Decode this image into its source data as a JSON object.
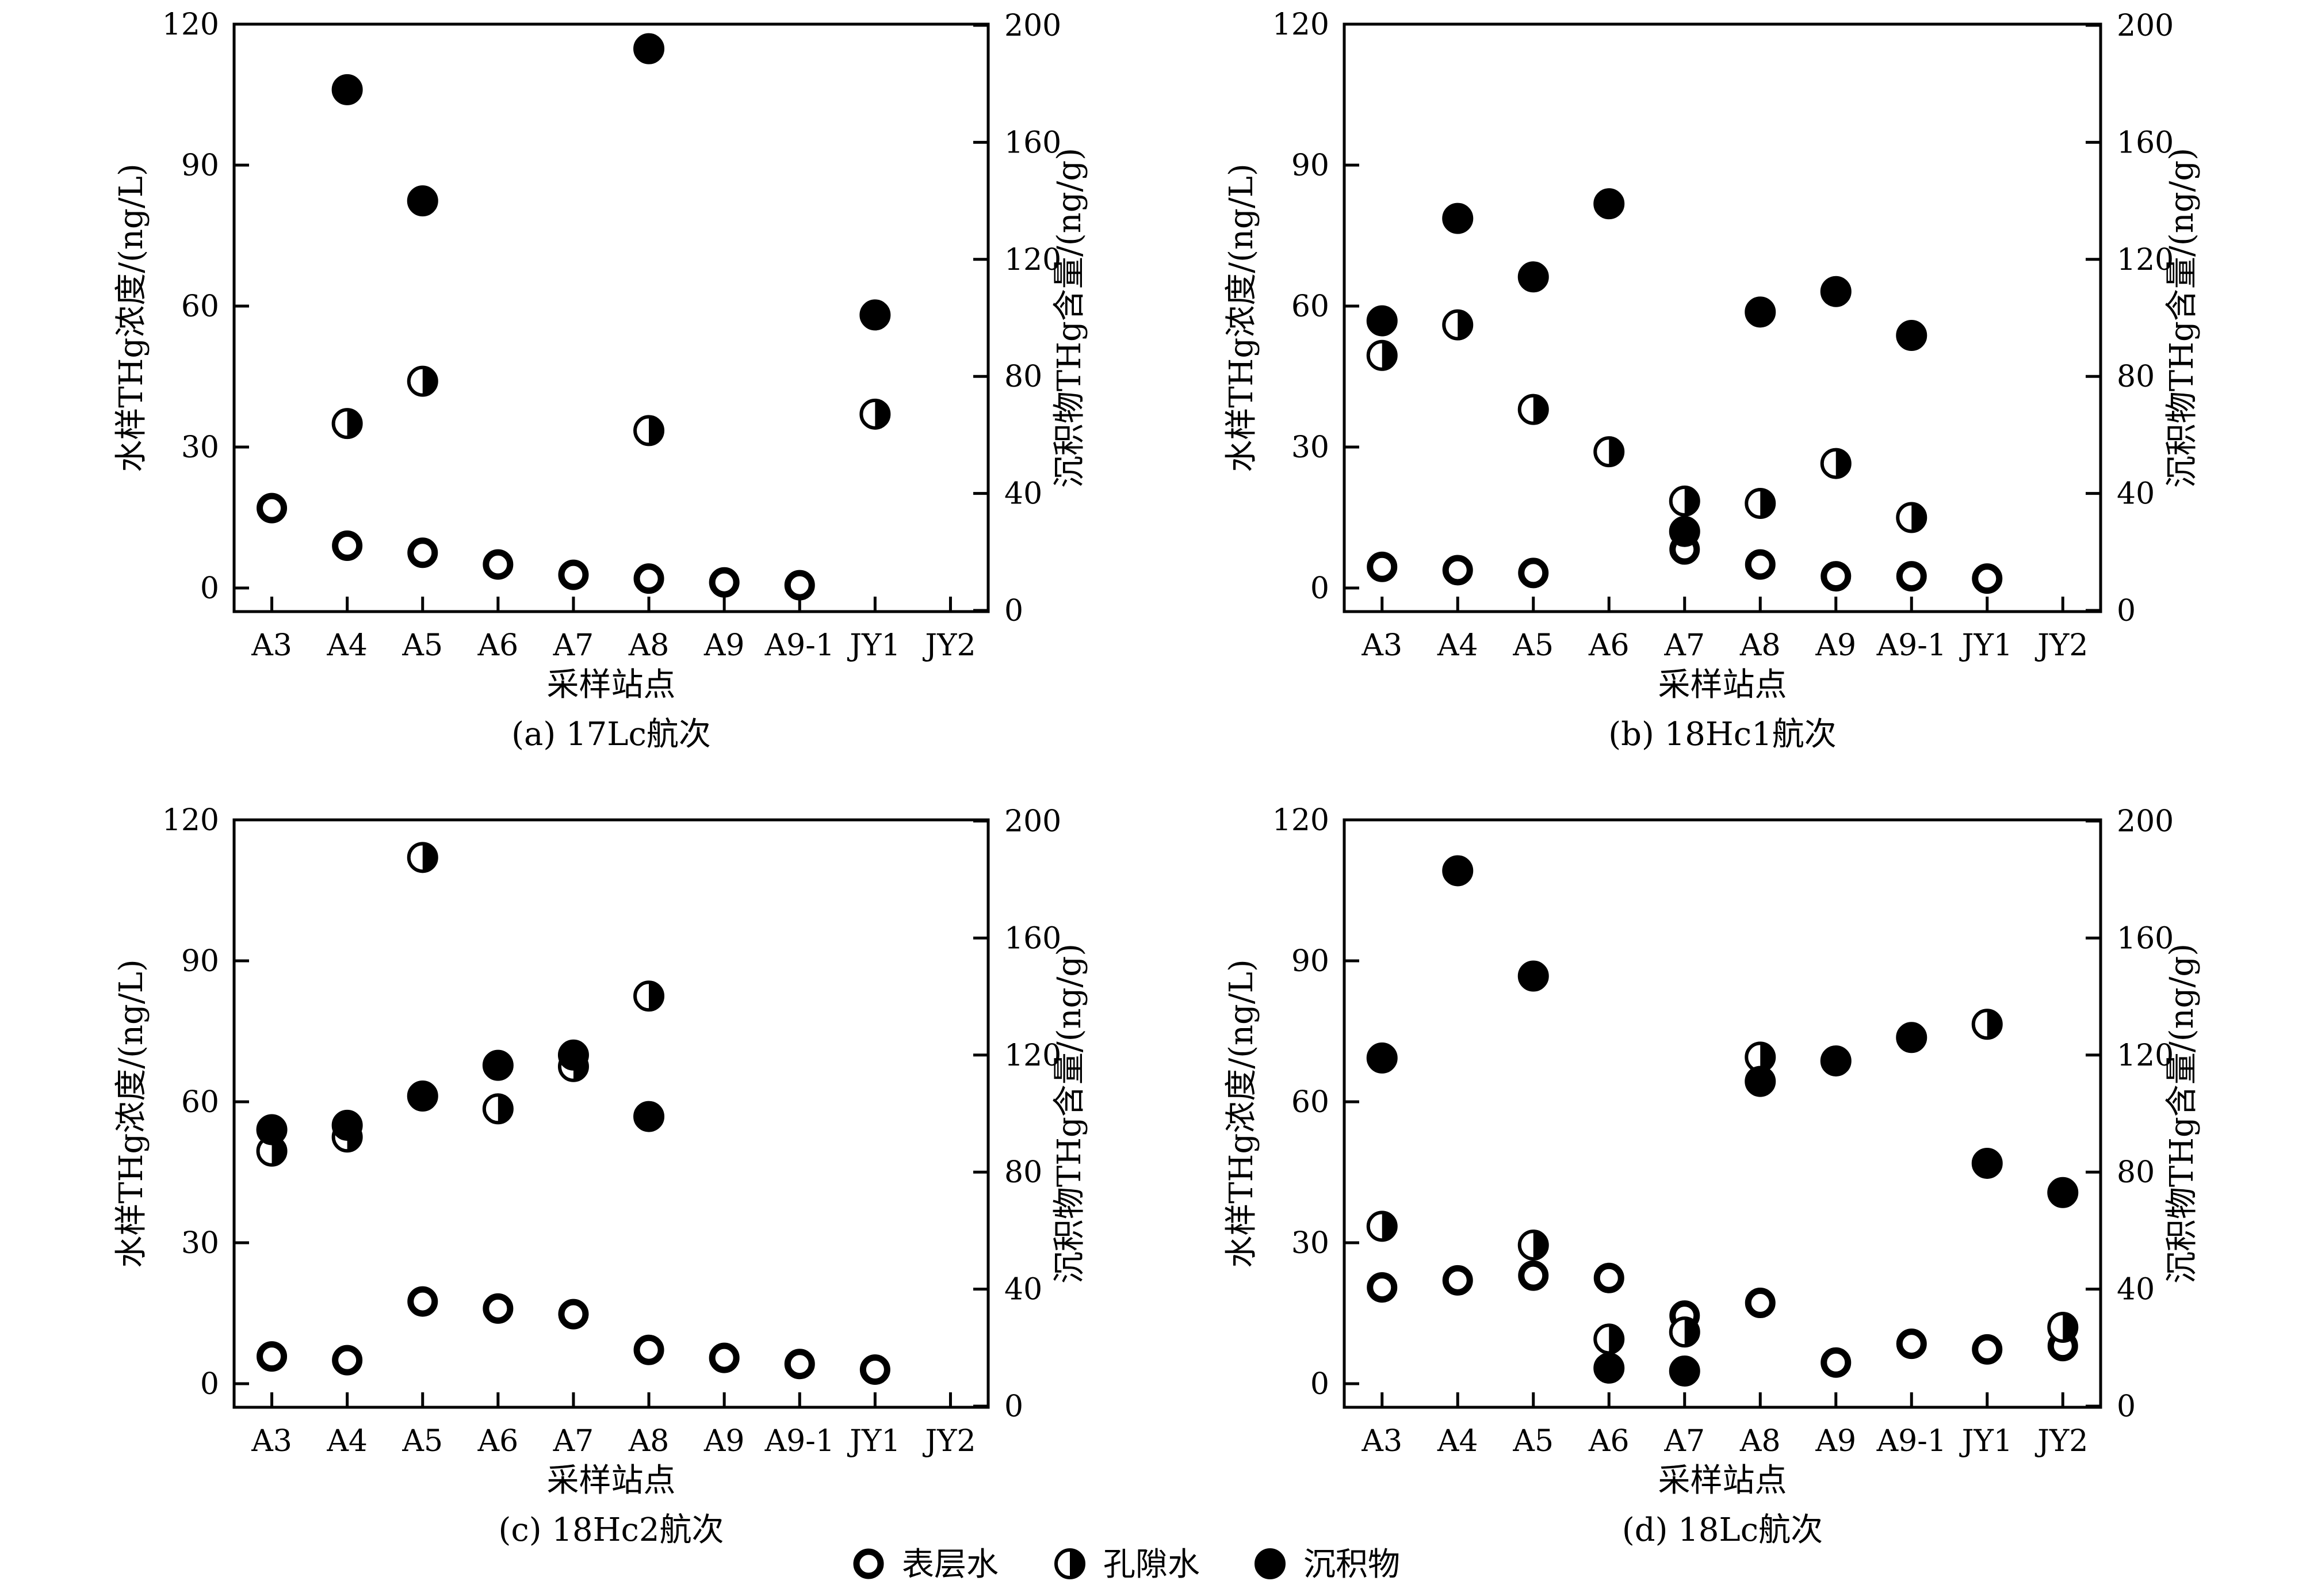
{
  "figure": {
    "legend": [
      {
        "key": "surface",
        "label": "表层水",
        "marker": "hollow-circle"
      },
      {
        "key": "pore",
        "label": "孔隙水",
        "marker": "half-filled-circle"
      },
      {
        "key": "sediment",
        "label": "沉积物",
        "marker": "filled-circle"
      }
    ],
    "colors": {
      "axis": "#000000",
      "marker": "#000000",
      "background": "#ffffff"
    }
  },
  "chart_data": [
    {
      "type": "scatter",
      "caption": "(a) 17Lc航次",
      "xlabel": "采样站点",
      "ylabel_left": "水样THg浓度/(ng/L)",
      "ylabel_right": "沉积物THg含量/(ng/g)",
      "categories": [
        "A3",
        "A4",
        "A5",
        "A6",
        "A7",
        "A8",
        "A9",
        "A9-1",
        "JY1",
        "JY2"
      ],
      "ylim_left": [
        0,
        120
      ],
      "yticks_left": [
        0,
        30,
        60,
        90,
        120
      ],
      "ylim_right": [
        0,
        200
      ],
      "yticks_right": [
        0,
        40,
        80,
        120,
        160,
        200
      ],
      "grid": false,
      "series": [
        {
          "name": "表层水",
          "axis": "left",
          "marker": "hollow-circle",
          "values": [
            17,
            9,
            7.5,
            5,
            2.8,
            2,
            1.2,
            0.6,
            null,
            null
          ]
        },
        {
          "name": "孔隙水",
          "axis": "left",
          "marker": "half-filled-circle",
          "values": [
            null,
            35,
            44,
            null,
            null,
            33.5,
            null,
            null,
            37,
            null
          ]
        },
        {
          "name": "沉积物",
          "axis": "right",
          "marker": "filled-circle",
          "values": [
            null,
            178,
            140,
            null,
            null,
            192,
            null,
            null,
            101,
            null
          ]
        }
      ]
    },
    {
      "type": "scatter",
      "caption": "(b) 18Hc1航次",
      "xlabel": "采样站点",
      "ylabel_left": "水样THg浓度/(ng/L)",
      "ylabel_right": "沉积物THg含量/(ng/g)",
      "categories": [
        "A3",
        "A4",
        "A5",
        "A6",
        "A7",
        "A8",
        "A9",
        "A9-1",
        "JY1",
        "JY2"
      ],
      "ylim_left": [
        0,
        120
      ],
      "yticks_left": [
        0,
        30,
        60,
        90,
        120
      ],
      "ylim_right": [
        0,
        200
      ],
      "yticks_right": [
        0,
        40,
        80,
        120,
        160,
        200
      ],
      "grid": false,
      "series": [
        {
          "name": "表层水",
          "axis": "left",
          "marker": "hollow-circle",
          "values": [
            4.5,
            3.8,
            3.2,
            null,
            8.2,
            5,
            2.5,
            2.5,
            2,
            null
          ]
        },
        {
          "name": "孔隙水",
          "axis": "left",
          "marker": "half-filled-circle",
          "values": [
            49.5,
            56,
            38,
            29,
            18.5,
            18,
            26.5,
            15,
            null,
            null
          ]
        },
        {
          "name": "沉积物",
          "axis": "right",
          "marker": "filled-circle",
          "values": [
            99,
            134,
            114,
            139,
            27,
            102,
            109,
            94,
            null,
            null
          ]
        }
      ]
    },
    {
      "type": "scatter",
      "caption": "(c) 18Hc2航次",
      "xlabel": "采样站点",
      "ylabel_left": "水样THg浓度/(ng/L)",
      "ylabel_right": "沉积物THg含量/(ng/g)",
      "categories": [
        "A3",
        "A4",
        "A5",
        "A6",
        "A7",
        "A8",
        "A9",
        "A9-1",
        "JY1",
        "JY2"
      ],
      "ylim_left": [
        0,
        120
      ],
      "yticks_left": [
        0,
        30,
        60,
        90,
        120
      ],
      "ylim_right": [
        0,
        200
      ],
      "yticks_right": [
        0,
        40,
        80,
        120,
        160,
        200
      ],
      "grid": false,
      "series": [
        {
          "name": "表层水",
          "axis": "left",
          "marker": "hollow-circle",
          "values": [
            5.8,
            5,
            17.5,
            16,
            14.8,
            7.2,
            5.5,
            4.2,
            3,
            null
          ]
        },
        {
          "name": "孔隙水",
          "axis": "left",
          "marker": "half-filled-circle",
          "values": [
            49.5,
            52.5,
            112,
            58.5,
            67.5,
            82.5,
            null,
            null,
            null,
            null
          ]
        },
        {
          "name": "沉积物",
          "axis": "right",
          "marker": "filled-circle",
          "values": [
            94.5,
            96,
            106,
            116.5,
            120,
            99,
            null,
            null,
            null,
            null
          ]
        }
      ]
    },
    {
      "type": "scatter",
      "caption": "(d) 18Lc航次",
      "xlabel": "采样站点",
      "ylabel_left": "水样THg浓度/(ng/L)",
      "ylabel_right": "沉积物THg含量/(ng/g)",
      "categories": [
        "A3",
        "A4",
        "A5",
        "A6",
        "A7",
        "A8",
        "A9",
        "A9-1",
        "JY1",
        "JY2"
      ],
      "ylim_left": [
        0,
        120
      ],
      "yticks_left": [
        0,
        30,
        60,
        90,
        120
      ],
      "ylim_right": [
        0,
        200
      ],
      "yticks_right": [
        0,
        40,
        80,
        120,
        160,
        200
      ],
      "grid": false,
      "series": [
        {
          "name": "表层水",
          "axis": "left",
          "marker": "hollow-circle",
          "values": [
            20.5,
            22,
            23,
            22.5,
            14.5,
            17.2,
            4.5,
            8.5,
            7.3,
            8
          ]
        },
        {
          "name": "孔隙水",
          "axis": "left",
          "marker": "half-filled-circle",
          "values": [
            33.5,
            null,
            29.5,
            9.5,
            11,
            69.5,
            null,
            null,
            76.5,
            12
          ]
        },
        {
          "name": "沉积物",
          "axis": "right",
          "marker": "filled-circle",
          "values": [
            119,
            183,
            147,
            13,
            12,
            111,
            118,
            126,
            83,
            73
          ]
        }
      ]
    }
  ]
}
